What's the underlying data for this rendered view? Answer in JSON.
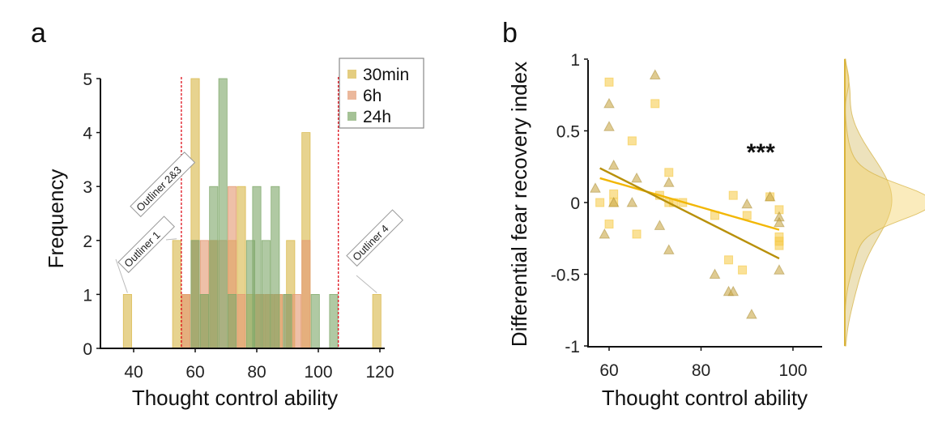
{
  "panels": {
    "a": {
      "letter": "a"
    },
    "b": {
      "letter": "b"
    }
  },
  "chart_data": [
    {
      "type": "bar",
      "subtype": "overlapping-histogram",
      "title": "",
      "panel": "a",
      "xlabel": "Thought control ability",
      "ylabel": "Frequency",
      "xlim": [
        31,
        122
      ],
      "ylim": [
        0,
        5
      ],
      "xticks": [
        40,
        60,
        80,
        100,
        120
      ],
      "yticks": [
        0,
        1,
        2,
        3,
        4,
        5
      ],
      "bin_width": 2.7,
      "legend": {
        "placement": "top-right",
        "boxed": true
      },
      "cutoff_lines": {
        "color": "#e0202a",
        "style": "dashed",
        "x": [
          55.5,
          106.5
        ]
      },
      "series": [
        {
          "name": "30min",
          "color": "#d9b84a",
          "bins": [
            {
              "x": 38,
              "count": 1
            },
            {
              "x": 54,
              "count": 2
            },
            {
              "x": 57,
              "count": 1
            },
            {
              "x": 60,
              "count": 5
            },
            {
              "x": 63,
              "count": 1
            },
            {
              "x": 66,
              "count": 2
            },
            {
              "x": 72,
              "count": 2
            },
            {
              "x": 75,
              "count": 3
            },
            {
              "x": 78,
              "count": 1
            },
            {
              "x": 81,
              "count": 1
            },
            {
              "x": 84,
              "count": 1
            },
            {
              "x": 87,
              "count": 1
            },
            {
              "x": 91,
              "count": 2
            },
            {
              "x": 96,
              "count": 4
            },
            {
              "x": 119,
              "count": 1
            }
          ]
        },
        {
          "name": "6h",
          "color": "#e39a72",
          "bins": [
            {
              "x": 57,
              "count": 1
            },
            {
              "x": 60,
              "count": 2
            },
            {
              "x": 63,
              "count": 2
            },
            {
              "x": 66,
              "count": 2
            },
            {
              "x": 69,
              "count": 2
            },
            {
              "x": 72,
              "count": 3
            },
            {
              "x": 75,
              "count": 1
            },
            {
              "x": 81,
              "count": 1
            },
            {
              "x": 84,
              "count": 1
            },
            {
              "x": 87,
              "count": 1
            },
            {
              "x": 90,
              "count": 1
            },
            {
              "x": 93,
              "count": 1
            },
            {
              "x": 96,
              "count": 2
            }
          ]
        },
        {
          "name": "24h",
          "color": "#7fa86a",
          "bins": [
            {
              "x": 60,
              "count": 2
            },
            {
              "x": 63,
              "count": 1
            },
            {
              "x": 66,
              "count": 3
            },
            {
              "x": 69,
              "count": 5
            },
            {
              "x": 72,
              "count": 1
            },
            {
              "x": 78,
              "count": 2
            },
            {
              "x": 80,
              "count": 3
            },
            {
              "x": 83,
              "count": 2
            },
            {
              "x": 86,
              "count": 3
            },
            {
              "x": 90,
              "count": 1
            },
            {
              "x": 99,
              "count": 1
            },
            {
              "x": 105,
              "count": 1
            }
          ]
        }
      ],
      "annotations": [
        {
          "text": "Outliner 1",
          "x": 38,
          "y": 1
        },
        {
          "text": "Outliner 2&3",
          "x": 54,
          "y": 2
        },
        {
          "text": "Outliner 4",
          "x": 119,
          "y": 1
        }
      ]
    },
    {
      "type": "scatter",
      "panel": "b",
      "title": "",
      "xlabel": "Thought control ability",
      "ylabel": "Differential fear recovery index",
      "xlim": [
        55,
        106
      ],
      "ylim": [
        -1,
        1
      ],
      "xticks": [
        60,
        80,
        100
      ],
      "yticks": [
        -1,
        -0.5,
        0,
        0.5,
        1
      ],
      "ytick_labels": [
        "-1",
        "-0.5",
        "0",
        "0.5",
        "1"
      ],
      "annotation": "***",
      "annotation_pos": {
        "x": 93,
        "y": 0.35
      },
      "series": [
        {
          "name": "squares",
          "marker": "square",
          "color": "#f5c842",
          "points": [
            [
              58,
              0.0
            ],
            [
              60,
              0.84
            ],
            [
              60,
              -0.15
            ],
            [
              61,
              0.06
            ],
            [
              61,
              0.0
            ],
            [
              65,
              0.43
            ],
            [
              66,
              -0.22
            ],
            [
              70,
              0.69
            ],
            [
              71,
              0.05
            ],
            [
              73,
              0.21
            ],
            [
              73,
              0.0
            ],
            [
              74,
              0.0
            ],
            [
              76,
              0.0
            ],
            [
              83,
              -0.09
            ],
            [
              86,
              -0.4
            ],
            [
              87,
              0.05
            ],
            [
              89,
              -0.47
            ],
            [
              90,
              -0.09
            ],
            [
              95,
              0.04
            ],
            [
              97,
              -0.05
            ],
            [
              97,
              -0.24
            ],
            [
              97,
              -0.27
            ],
            [
              97,
              -0.3
            ]
          ],
          "fit": {
            "x": [
              58,
              97
            ],
            "y": [
              0.17,
              -0.19
            ],
            "color": "#f2b705"
          }
        },
        {
          "name": "triangles",
          "marker": "triangle",
          "color": "#c9a84a",
          "points": [
            [
              57,
              0.1
            ],
            [
              59,
              -0.22
            ],
            [
              60,
              0.69
            ],
            [
              60,
              0.53
            ],
            [
              61,
              0.0
            ],
            [
              61,
              0.26
            ],
            [
              65,
              0.0
            ],
            [
              66,
              0.17
            ],
            [
              70,
              0.89
            ],
            [
              71,
              -0.16
            ],
            [
              73,
              0.14
            ],
            [
              73,
              -0.33
            ],
            [
              83,
              -0.5
            ],
            [
              86,
              -0.62
            ],
            [
              87,
              -0.62
            ],
            [
              90,
              -0.01
            ],
            [
              91,
              -0.78
            ],
            [
              95,
              0.04
            ],
            [
              97,
              -0.1
            ],
            [
              97,
              -0.14
            ],
            [
              97,
              -0.47
            ]
          ],
          "fit": {
            "x": [
              58,
              97
            ],
            "y": [
              0.24,
              -0.39
            ],
            "color": "#b8900a"
          }
        }
      ],
      "marginal_density": {
        "placement": "right",
        "series": [
          {
            "name": "squares",
            "color": "#f5d36a",
            "peak_y": 0.0
          },
          {
            "name": "triangles",
            "color": "#d6bf6a",
            "peak_y": 0.02
          }
        ]
      }
    }
  ]
}
